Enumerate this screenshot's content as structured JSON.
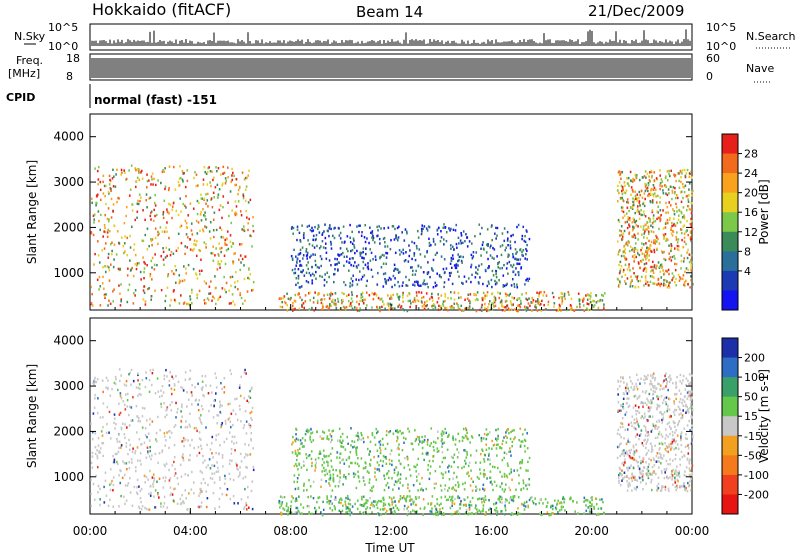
{
  "header": {
    "station": "Hokkaido (fitACF)",
    "beam": "Beam 14",
    "date": "21/Dec/2009"
  },
  "noise_panel": {
    "left_label": "N.Sky",
    "right_label": "N.Search",
    "y_ticks_left": [
      "10^5",
      "10^0"
    ],
    "y_ticks_right": [
      "10^5",
      "10^0"
    ]
  },
  "freq_panel": {
    "left_label_1": "Freq.",
    "left_label_2": "[MHz]",
    "right_label": "Nave",
    "y_ticks_left": [
      "18",
      "8"
    ],
    "y_ticks_right": [
      "60",
      "0"
    ]
  },
  "cpid_panel": {
    "left_label": "CPID",
    "mode_text": "normal (fast) -151"
  },
  "chart_data": [
    {
      "type": "heatmap",
      "title": "",
      "quantity": "Power",
      "ylabel": "Slant Range [km]",
      "ylim": [
        180,
        4500
      ],
      "y_ticks": [
        1000,
        2000,
        3000,
        4000
      ],
      "colorbar_label": "Power [dB]",
      "colorbar_ticks": [
        "28",
        "24",
        "20",
        "16",
        "12",
        "8",
        "4"
      ],
      "colorbar_colors": [
        "#e8201c",
        "#f26b1d",
        "#f8a21e",
        "#e8d020",
        "#7cc848",
        "#3a8a5a",
        "#2a6e9a",
        "#1c3ab4",
        "#1414f0"
      ],
      "regions": [
        {
          "x": [
            0.0,
            6.5
          ],
          "y": [
            300,
            3400
          ],
          "level": "high"
        },
        {
          "x": [
            7.5,
            20.5
          ],
          "y": [
            180,
            600
          ],
          "level": "high"
        },
        {
          "x": [
            8.0,
            17.5
          ],
          "y": [
            700,
            2100
          ],
          "level": "low"
        },
        {
          "x": [
            21.0,
            24.0
          ],
          "y": [
            700,
            3300
          ],
          "level": "high"
        }
      ]
    },
    {
      "type": "heatmap",
      "title": "",
      "quantity": "Velocity",
      "ylabel": "Slant Range [km]",
      "ylim": [
        180,
        4500
      ],
      "y_ticks": [
        1000,
        2000,
        3000,
        4000
      ],
      "colorbar_label": "Velocity [m s-1]",
      "colorbar_ticks": [
        "200",
        "100",
        "50",
        "15",
        "-15",
        "-50",
        "-100",
        "-200"
      ],
      "colorbar_colors": [
        "#1c2fa8",
        "#2d6ec4",
        "#3aa06a",
        "#66c84a",
        "#c8c8c8",
        "#f2a020",
        "#f57a1c",
        "#f04020",
        "#e81414"
      ],
      "regions": [
        {
          "x": [
            0.0,
            6.5
          ],
          "y": [
            300,
            3400
          ],
          "level": "near-zero"
        },
        {
          "x": [
            7.5,
            20.5
          ],
          "y": [
            180,
            600
          ],
          "level": "positive"
        },
        {
          "x": [
            8.0,
            17.5
          ],
          "y": [
            700,
            2100
          ],
          "level": "positive"
        },
        {
          "x": [
            21.0,
            24.0
          ],
          "y": [
            700,
            3300
          ],
          "level": "near-zero"
        }
      ]
    }
  ],
  "x_axis": {
    "label": "Time UT",
    "ticks": [
      "00:00",
      "04:00",
      "08:00",
      "12:00",
      "16:00",
      "20:00",
      "00:00"
    ],
    "range_hours": [
      0,
      24
    ]
  }
}
